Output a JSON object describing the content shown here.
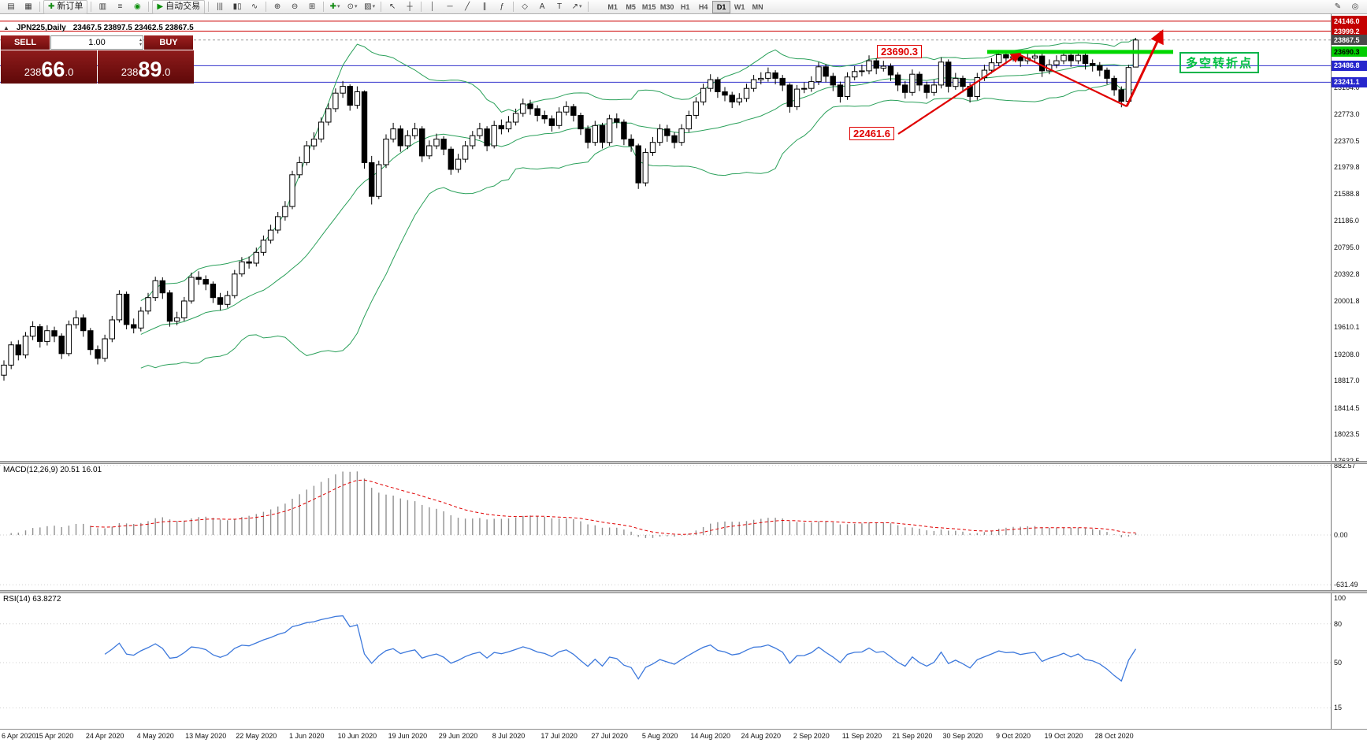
{
  "toolbar": {
    "buttons": [
      {
        "type": "icon",
        "name": "new-chart-icon",
        "glyph": "▤"
      },
      {
        "type": "icon",
        "name": "chart-profiles-icon",
        "glyph": "▦"
      },
      {
        "type": "sep"
      },
      {
        "type": "labeled",
        "name": "new-order-button",
        "glyph": "✚",
        "glyph_color": "#128a12",
        "label": "新订单"
      },
      {
        "type": "sep"
      },
      {
        "type": "icon",
        "name": "market-watch-icon",
        "glyph": "▥"
      },
      {
        "type": "icon",
        "name": "data-window-icon",
        "glyph": "≡"
      },
      {
        "type": "icon",
        "name": "terminal-icon",
        "glyph": "◉",
        "glyph_color": "#0b8f0b"
      },
      {
        "type": "sep"
      },
      {
        "type": "labeled",
        "name": "autotrading-button",
        "glyph": "▶",
        "glyph_color": "#0b8f0b",
        "label": "自动交易"
      },
      {
        "type": "sep"
      },
      {
        "type": "icon",
        "name": "bar-chart-type-icon",
        "glyph": "|||"
      },
      {
        "type": "icon",
        "name": "candlestick-chart-type-icon",
        "glyph": "▮▯"
      },
      {
        "type": "icon",
        "name": "line-chart-type-icon",
        "glyph": "∿"
      },
      {
        "type": "sep"
      },
      {
        "type": "icon",
        "name": "zoom-in-icon",
        "glyph": "⊕"
      },
      {
        "type": "icon",
        "name": "zoom-out-icon",
        "glyph": "⊖"
      },
      {
        "type": "icon",
        "name": "tile-windows-icon",
        "glyph": "⊞"
      },
      {
        "type": "sep"
      },
      {
        "type": "dropdown",
        "name": "indicators-button",
        "glyph": "✚",
        "glyph_color": "#128a12"
      },
      {
        "type": "dropdown",
        "name": "periods-button",
        "glyph": "⊙"
      },
      {
        "type": "dropdown",
        "name": "templates-button",
        "glyph": "▨"
      },
      {
        "type": "sep"
      },
      {
        "type": "icon",
        "name": "cursor-icon",
        "glyph": "↖"
      },
      {
        "type": "icon",
        "name": "crosshair-icon",
        "glyph": "┼"
      },
      {
        "type": "sep"
      },
      {
        "type": "icon",
        "name": "vertical-line-icon",
        "glyph": "│"
      },
      {
        "type": "icon",
        "name": "horizontal-line-icon",
        "glyph": "─"
      },
      {
        "type": "icon",
        "name": "trendline-icon",
        "glyph": "╱"
      },
      {
        "type": "icon",
        "name": "equidistant-channel-icon",
        "glyph": "∥"
      },
      {
        "type": "icon",
        "name": "fibonacci-icon",
        "glyph": "ƒ"
      },
      {
        "type": "sep"
      },
      {
        "type": "icon",
        "name": "shapes-icon",
        "glyph": "◇"
      },
      {
        "type": "icon",
        "name": "text-icon",
        "glyph": "A"
      },
      {
        "type": "icon",
        "name": "text-label-icon",
        "glyph": "T"
      },
      {
        "type": "dropdown",
        "name": "arrows-icon",
        "glyph": "↗"
      },
      {
        "type": "sep"
      }
    ],
    "timeframes": [
      "M1",
      "M5",
      "M15",
      "M30",
      "H1",
      "H4",
      "D1",
      "W1",
      "MN"
    ],
    "active_timeframe": "D1",
    "right_icons": [
      {
        "name": "pencil-tool-icon",
        "glyph": "✎"
      },
      {
        "name": "pointer-mode-icon",
        "glyph": "◎"
      }
    ]
  },
  "chart": {
    "title_icon": "▲",
    "symbol_period": "JPN225,Daily",
    "ohlc_readout": "23467.5 23897.5 23462.5 23867.5",
    "last_price": "23867.5",
    "trade_panel": {
      "sell_label": "SELL",
      "buy_label": "BUY",
      "volume": "1.00",
      "sell_price": "23866.0",
      "sell_price_parts": [
        "238",
        "66",
        ".0"
      ],
      "buy_price": "23889.0",
      "buy_price_parts": [
        "238",
        "89",
        ".0"
      ]
    },
    "hlines": [
      {
        "price": 24146.0,
        "color": "#cc0000"
      },
      {
        "price": 23999.2,
        "color": "#cc0000"
      },
      {
        "price": 23486.8,
        "color": "#3333cc"
      },
      {
        "price": 23241.1,
        "color": "#3333cc"
      }
    ],
    "green_line": {
      "price": 23690.3,
      "color": "#00d800"
    },
    "scale_boxes": [
      {
        "text": "24146.0",
        "bg": "#c40000",
        "fg": "#ffffff"
      },
      {
        "text": "23999.2",
        "bg": "#c40000",
        "fg": "#ffffff"
      },
      {
        "text": "23867.5",
        "bg": "#4a4a4a",
        "fg": "#ffffff"
      },
      {
        "text": "23690.3",
        "bg": "#00cc00",
        "fg": "#000000"
      },
      {
        "text": "23486.8",
        "bg": "#2626cc",
        "fg": "#ffffff"
      },
      {
        "text": "23241.1",
        "bg": "#2626cc",
        "fg": "#ffffff"
      }
    ],
    "axis_ticks": [
      "23164.0",
      "22773.0",
      "22370.5",
      "21979.8",
      "21588.8",
      "21186.0",
      "20795.0",
      "20392.8",
      "20001.8",
      "19610.1",
      "19208.0",
      "18817.0",
      "18414.5",
      "18023.5",
      "17632.5"
    ],
    "annotations": {
      "resistance_label": "23690.3",
      "support_label": "22461.6",
      "note_label": "多空转折点"
    },
    "colors": {
      "bollinger": "#2aa05a",
      "bull_candle": "#ffffff",
      "bear_candle": "#000000",
      "candle_outline": "#000000",
      "rsi_line": "#3c78dc",
      "macd_signal": "#e00000",
      "macd_histogram": "#909090",
      "trend_arrow": "#e00000"
    }
  },
  "chart_data": {
    "type": "candlestick",
    "symbol": "JPN225",
    "period": "Daily",
    "overlays": [
      "Bollinger Bands (20,2)"
    ],
    "label_every_bars": 7,
    "date_labels": [
      "6 Apr 2020",
      "15 Apr 2020",
      "24 Apr 2020",
      "4 May 2020",
      "13 May 2020",
      "22 May 2020",
      "1 Jun 2020",
      "10 Jun 2020",
      "19 Jun 2020",
      "29 Jun 2020",
      "8 Jul 2020",
      "17 Jul 2020",
      "27 Jul 2020",
      "5 Aug 2020",
      "14 Aug 2020",
      "24 Aug 2020",
      "2 Sep 2020",
      "11 Sep 2020",
      "21 Sep 2020",
      "30 Sep 2020",
      "9 Oct 2020",
      "19 Oct 2020",
      "28 Oct 2020"
    ],
    "candles": [
      [
        18900,
        19120,
        18820,
        19050
      ],
      [
        19050,
        19400,
        18990,
        19350
      ],
      [
        19350,
        19420,
        19120,
        19200
      ],
      [
        19200,
        19540,
        19150,
        19480
      ],
      [
        19480,
        19700,
        19420,
        19620
      ],
      [
        19620,
        19660,
        19310,
        19400
      ],
      [
        19400,
        19640,
        19340,
        19560
      ],
      [
        19560,
        19620,
        19390,
        19480
      ],
      [
        19480,
        19520,
        19140,
        19220
      ],
      [
        19220,
        19710,
        19180,
        19650
      ],
      [
        19650,
        19860,
        19590,
        19750
      ],
      [
        19750,
        19800,
        19470,
        19560
      ],
      [
        19560,
        19600,
        19200,
        19280
      ],
      [
        19280,
        19340,
        19060,
        19150
      ],
      [
        19150,
        19500,
        19100,
        19440
      ],
      [
        19440,
        19780,
        19390,
        19720
      ],
      [
        19720,
        20160,
        19680,
        20100
      ],
      [
        20100,
        20140,
        19580,
        19650
      ],
      [
        19650,
        19740,
        19520,
        19600
      ],
      [
        19600,
        19910,
        19550,
        19850
      ],
      [
        19850,
        20120,
        19800,
        20050
      ],
      [
        20050,
        20360,
        20000,
        20300
      ],
      [
        20300,
        20350,
        20030,
        20120
      ],
      [
        20120,
        20160,
        19620,
        19700
      ],
      [
        19700,
        19840,
        19640,
        19750
      ],
      [
        19750,
        20060,
        19700,
        20000
      ],
      [
        20000,
        20420,
        19960,
        20350
      ],
      [
        20350,
        20440,
        20240,
        20320
      ],
      [
        20320,
        20380,
        20160,
        20250
      ],
      [
        20250,
        20290,
        19970,
        20050
      ],
      [
        20050,
        20120,
        19860,
        19950
      ],
      [
        19950,
        20150,
        19900,
        20080
      ],
      [
        20080,
        20460,
        20040,
        20400
      ],
      [
        20400,
        20650,
        20360,
        20580
      ],
      [
        20580,
        20660,
        20480,
        20560
      ],
      [
        20560,
        20790,
        20510,
        20720
      ],
      [
        20720,
        20970,
        20670,
        20900
      ],
      [
        20900,
        21130,
        20850,
        21050
      ],
      [
        21050,
        21320,
        21000,
        21250
      ],
      [
        21250,
        21480,
        21190,
        21400
      ],
      [
        21400,
        21930,
        21360,
        21870
      ],
      [
        21870,
        22140,
        21820,
        22050
      ],
      [
        22050,
        22370,
        22010,
        22300
      ],
      [
        22300,
        22500,
        22240,
        22400
      ],
      [
        22400,
        22720,
        22350,
        22650
      ],
      [
        22650,
        22930,
        22600,
        22850
      ],
      [
        22850,
        23150,
        22800,
        23080
      ],
      [
        23080,
        23260,
        23010,
        23180
      ],
      [
        23180,
        23210,
        22820,
        22900
      ],
      [
        22900,
        23180,
        22850,
        23100
      ],
      [
        23100,
        23120,
        21960,
        22050
      ],
      [
        22050,
        22150,
        21430,
        21550
      ],
      [
        21550,
        22080,
        21510,
        22020
      ],
      [
        22020,
        22470,
        21970,
        22400
      ],
      [
        22400,
        22640,
        22350,
        22550
      ],
      [
        22550,
        22600,
        22210,
        22300
      ],
      [
        22300,
        22530,
        22250,
        22450
      ],
      [
        22450,
        22640,
        22400,
        22550
      ],
      [
        22550,
        22590,
        22060,
        22150
      ],
      [
        22150,
        22380,
        22100,
        22300
      ],
      [
        22300,
        22480,
        22250,
        22400
      ],
      [
        22400,
        22440,
        22160,
        22250
      ],
      [
        22250,
        22290,
        21870,
        21950
      ],
      [
        21950,
        22180,
        21900,
        22100
      ],
      [
        22100,
        22370,
        22050,
        22300
      ],
      [
        22300,
        22520,
        22250,
        22450
      ],
      [
        22450,
        22640,
        22400,
        22550
      ],
      [
        22550,
        22590,
        22220,
        22300
      ],
      [
        22300,
        22670,
        22260,
        22600
      ],
      [
        22600,
        22690,
        22470,
        22550
      ],
      [
        22550,
        22740,
        22500,
        22650
      ],
      [
        22650,
        22850,
        22600,
        22780
      ],
      [
        22780,
        23000,
        22730,
        22920
      ],
      [
        22920,
        22980,
        22760,
        22850
      ],
      [
        22850,
        22900,
        22660,
        22750
      ],
      [
        22750,
        22820,
        22630,
        22700
      ],
      [
        22700,
        22750,
        22510,
        22600
      ],
      [
        22600,
        22870,
        22550,
        22800
      ],
      [
        22800,
        22960,
        22750,
        22880
      ],
      [
        22880,
        22920,
        22660,
        22750
      ],
      [
        22750,
        22790,
        22460,
        22550
      ],
      [
        22550,
        22600,
        22260,
        22350
      ],
      [
        22350,
        22670,
        22300,
        22600
      ],
      [
        22600,
        22640,
        22260,
        22350
      ],
      [
        22350,
        22760,
        22300,
        22700
      ],
      [
        22700,
        22780,
        22560,
        22650
      ],
      [
        22650,
        22690,
        22310,
        22400
      ],
      [
        22400,
        22470,
        22210,
        22300
      ],
      [
        22300,
        22330,
        21660,
        21750
      ],
      [
        21750,
        22260,
        21700,
        22200
      ],
      [
        22200,
        22430,
        22150,
        22350
      ],
      [
        22350,
        22620,
        22300,
        22550
      ],
      [
        22550,
        22610,
        22360,
        22450
      ],
      [
        22450,
        22500,
        22260,
        22350
      ],
      [
        22350,
        22620,
        22300,
        22550
      ],
      [
        22550,
        22820,
        22500,
        22750
      ],
      [
        22750,
        23020,
        22700,
        22950
      ],
      [
        22950,
        23220,
        22900,
        23150
      ],
      [
        23150,
        23360,
        23100,
        23280
      ],
      [
        23280,
        23320,
        23010,
        23100
      ],
      [
        23100,
        23170,
        22960,
        23050
      ],
      [
        23050,
        23100,
        22860,
        22950
      ],
      [
        22950,
        23080,
        22900,
        23000
      ],
      [
        23000,
        23220,
        22950,
        23150
      ],
      [
        23150,
        23350,
        23100,
        23280
      ],
      [
        23280,
        23390,
        23210,
        23300
      ],
      [
        23300,
        23460,
        23250,
        23380
      ],
      [
        23380,
        23420,
        23210,
        23300
      ],
      [
        23300,
        23350,
        23110,
        23200
      ],
      [
        23200,
        23230,
        22790,
        22880
      ],
      [
        22880,
        23200,
        22830,
        23140
      ],
      [
        23140,
        23240,
        23080,
        23150
      ],
      [
        23150,
        23330,
        23100,
        23250
      ],
      [
        23250,
        23540,
        23200,
        23470
      ],
      [
        23470,
        23510,
        23240,
        23330
      ],
      [
        23330,
        23380,
        23110,
        23200
      ],
      [
        23200,
        23250,
        22940,
        23030
      ],
      [
        23030,
        23390,
        22980,
        23320
      ],
      [
        23320,
        23480,
        23270,
        23400
      ],
      [
        23400,
        23500,
        23330,
        23410
      ],
      [
        23410,
        23640,
        23360,
        23560
      ],
      [
        23560,
        23600,
        23360,
        23450
      ],
      [
        23450,
        23560,
        23400,
        23480
      ],
      [
        23480,
        23520,
        23260,
        23350
      ],
      [
        23350,
        23390,
        23110,
        23200
      ],
      [
        23200,
        23260,
        23000,
        23090
      ],
      [
        23090,
        23430,
        23040,
        23360
      ],
      [
        23360,
        23400,
        23110,
        23200
      ],
      [
        23200,
        23250,
        23000,
        23090
      ],
      [
        23090,
        23280,
        23040,
        23200
      ],
      [
        23200,
        23610,
        23150,
        23540
      ],
      [
        23540,
        23580,
        23090,
        23180
      ],
      [
        23180,
        23380,
        23130,
        23300
      ],
      [
        23300,
        23340,
        23090,
        23180
      ],
      [
        23180,
        23230,
        22940,
        23030
      ],
      [
        23030,
        23380,
        22980,
        23310
      ],
      [
        23310,
        23500,
        23260,
        23420
      ],
      [
        23420,
        23600,
        23370,
        23530
      ],
      [
        23530,
        23720,
        23480,
        23650
      ],
      [
        23650,
        23710,
        23510,
        23600
      ],
      [
        23600,
        23700,
        23550,
        23620
      ],
      [
        23620,
        23660,
        23470,
        23560
      ],
      [
        23560,
        23680,
        23510,
        23600
      ],
      [
        23600,
        23710,
        23550,
        23630
      ],
      [
        23630,
        23670,
        23320,
        23410
      ],
      [
        23410,
        23580,
        23360,
        23500
      ],
      [
        23500,
        23640,
        23450,
        23560
      ],
      [
        23560,
        23720,
        23510,
        23640
      ],
      [
        23640,
        23680,
        23470,
        23560
      ],
      [
        23560,
        23720,
        23510,
        23640
      ],
      [
        23640,
        23680,
        23430,
        23520
      ],
      [
        23520,
        23580,
        23400,
        23490
      ],
      [
        23490,
        23540,
        23330,
        23420
      ],
      [
        23420,
        23460,
        23210,
        23300
      ],
      [
        23300,
        23340,
        23040,
        23130
      ],
      [
        23130,
        23180,
        22870,
        22960
      ],
      [
        22960,
        23500,
        22920,
        23460
      ],
      [
        23467.5,
        23897.5,
        23462.5,
        23867.5
      ]
    ]
  },
  "macd": {
    "label": "MACD(12,26,9) 20.51 16.01",
    "params": [
      12,
      26,
      9
    ],
    "value": "20.51",
    "signal": "16.01",
    "scale_ticks": [
      "882.57",
      "0.00",
      "-631.49"
    ]
  },
  "rsi": {
    "label": "RSI(14) 63.8272",
    "period": 14,
    "value": "63.8272",
    "scale_ticks": [
      "100",
      "80",
      "50",
      "15"
    ]
  }
}
